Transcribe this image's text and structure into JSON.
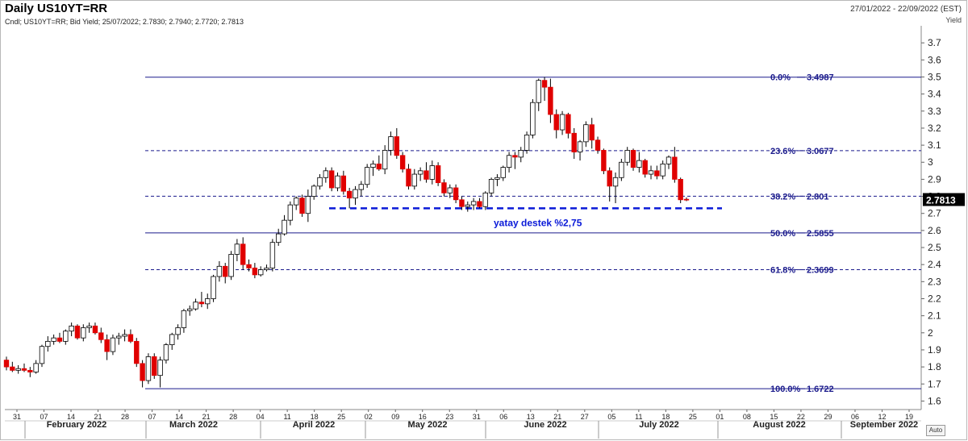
{
  "header": {
    "title": "Daily US10YT=RR",
    "subtitle": "Cndl; US10YT=RR; Bid Yield; 25/07/2022; 2.7830; 2.7940; 2.7720; 2.7813",
    "date_range": "27/01/2022 - 22/09/2022 (EST)",
    "y_unit": "Yield",
    "auto_label": "Auto"
  },
  "colors": {
    "up": "#ffffff",
    "down": "#e00000",
    "fib": "#1a1a8c",
    "support": "#0a1ad8",
    "price_box": "#000000"
  },
  "chart_data": {
    "type": "candlestick",
    "ylim": [
      1.55,
      3.8
    ],
    "y_ticks": [
      "1.6",
      "1.7",
      "1.8",
      "1.9",
      "2",
      "2.1",
      "2.2",
      "2.3",
      "2.4",
      "2.5",
      "2.6",
      "2.7",
      "2.8",
      "2.9",
      "3",
      "3.1",
      "3.2",
      "3.3",
      "3.4",
      "3.5",
      "3.6",
      "3.7"
    ],
    "x_ticks": [
      "31",
      "07",
      "14",
      "21",
      "28",
      "07",
      "14",
      "21",
      "28",
      "04",
      "11",
      "18",
      "25",
      "02",
      "09",
      "16",
      "23",
      "31",
      "06",
      "13",
      "21",
      "27",
      "05",
      "11",
      "18",
      "25",
      "01",
      "08",
      "15",
      "22",
      "29",
      "06",
      "12",
      "19"
    ],
    "months": [
      "February 2022",
      "March 2022",
      "April 2022",
      "May 2022",
      "June 2022",
      "July 2022",
      "August 2022",
      "September 2022"
    ],
    "last_price": "2.7813",
    "fib_levels": [
      {
        "label": "0.0%",
        "value": "3.4987",
        "y": 3.4987,
        "dash": false
      },
      {
        "label": "23.6%",
        "value": "3.0677",
        "y": 3.0677,
        "dash": true
      },
      {
        "label": "38.2%",
        "value": "2.801",
        "y": 2.801,
        "dash": true
      },
      {
        "label": "50.0%",
        "value": "2.5855",
        "y": 2.5855,
        "dash": false
      },
      {
        "label": "61.8%",
        "value": "2.3699",
        "y": 2.3699,
        "dash": true
      },
      {
        "label": "100.0%",
        "value": "1.6722",
        "y": 1.6722,
        "dash": false
      }
    ],
    "support": {
      "label": "yatay destek %2,75",
      "y": 2.73
    },
    "candles": [
      [
        1.84,
        1.86,
        1.78,
        1.8
      ],
      [
        1.8,
        1.83,
        1.77,
        1.78
      ],
      [
        1.78,
        1.81,
        1.76,
        1.79
      ],
      [
        1.79,
        1.82,
        1.77,
        1.78
      ],
      [
        1.78,
        1.8,
        1.74,
        1.77
      ],
      [
        1.77,
        1.84,
        1.76,
        1.82
      ],
      [
        1.82,
        1.93,
        1.8,
        1.92
      ],
      [
        1.92,
        1.98,
        1.89,
        1.95
      ],
      [
        1.95,
        1.99,
        1.93,
        1.97
      ],
      [
        1.97,
        2.0,
        1.94,
        1.95
      ],
      [
        1.95,
        2.02,
        1.93,
        2.01
      ],
      [
        2.01,
        2.06,
        1.98,
        2.04
      ],
      [
        2.04,
        2.05,
        1.96,
        1.97
      ],
      [
        1.97,
        2.05,
        1.95,
        2.03
      ],
      [
        2.03,
        2.06,
        2.0,
        2.04
      ],
      [
        2.04,
        2.06,
        1.99,
        2.0
      ],
      [
        2.0,
        2.03,
        1.94,
        1.96
      ],
      [
        1.96,
        1.99,
        1.84,
        1.89
      ],
      [
        1.89,
        1.99,
        1.87,
        1.97
      ],
      [
        1.97,
        2.0,
        1.93,
        1.98
      ],
      [
        1.98,
        2.02,
        1.95,
        1.99
      ],
      [
        1.99,
        2.02,
        1.94,
        1.95
      ],
      [
        1.95,
        1.97,
        1.8,
        1.82
      ],
      [
        1.82,
        1.84,
        1.68,
        1.72
      ],
      [
        1.72,
        1.88,
        1.7,
        1.86
      ],
      [
        1.86,
        1.88,
        1.73,
        1.75
      ],
      [
        1.75,
        1.86,
        1.68,
        1.84
      ],
      [
        1.84,
        1.94,
        1.82,
        1.93
      ],
      [
        1.93,
        2.0,
        1.9,
        1.99
      ],
      [
        1.99,
        2.05,
        1.96,
        2.03
      ],
      [
        2.03,
        2.14,
        2.0,
        2.13
      ],
      [
        2.13,
        2.16,
        2.1,
        2.14
      ],
      [
        2.14,
        2.2,
        2.13,
        2.18
      ],
      [
        2.18,
        2.24,
        2.15,
        2.17
      ],
      [
        2.17,
        2.23,
        2.14,
        2.2
      ],
      [
        2.2,
        2.34,
        2.18,
        2.33
      ],
      [
        2.33,
        2.42,
        2.3,
        2.39
      ],
      [
        2.39,
        2.41,
        2.29,
        2.33
      ],
      [
        2.33,
        2.48,
        2.31,
        2.46
      ],
      [
        2.46,
        2.55,
        2.42,
        2.52
      ],
      [
        2.52,
        2.56,
        2.37,
        2.4
      ],
      [
        2.4,
        2.43,
        2.36,
        2.38
      ],
      [
        2.38,
        2.41,
        2.32,
        2.34
      ],
      [
        2.34,
        2.39,
        2.33,
        2.37
      ],
      [
        2.37,
        2.4,
        2.36,
        2.38
      ],
      [
        2.38,
        2.55,
        2.36,
        2.53
      ],
      [
        2.53,
        2.61,
        2.51,
        2.58
      ],
      [
        2.58,
        2.69,
        2.57,
        2.66
      ],
      [
        2.66,
        2.77,
        2.63,
        2.75
      ],
      [
        2.75,
        2.8,
        2.72,
        2.79
      ],
      [
        2.79,
        2.81,
        2.68,
        2.7
      ],
      [
        2.7,
        2.84,
        2.65,
        2.8
      ],
      [
        2.8,
        2.87,
        2.78,
        2.86
      ],
      [
        2.86,
        2.93,
        2.84,
        2.91
      ],
      [
        2.91,
        2.97,
        2.88,
        2.95
      ],
      [
        2.95,
        2.97,
        2.83,
        2.85
      ],
      [
        2.85,
        2.94,
        2.83,
        2.92
      ],
      [
        2.92,
        2.95,
        2.81,
        2.83
      ],
      [
        2.83,
        2.85,
        2.73,
        2.79
      ],
      [
        2.79,
        2.86,
        2.75,
        2.84
      ],
      [
        2.84,
        2.89,
        2.8,
        2.87
      ],
      [
        2.87,
        2.99,
        2.85,
        2.97
      ],
      [
        2.97,
        3.01,
        2.92,
        2.99
      ],
      [
        2.99,
        3.04,
        2.95,
        2.96
      ],
      [
        2.96,
        3.1,
        2.93,
        3.07
      ],
      [
        3.07,
        3.18,
        3.04,
        3.15
      ],
      [
        3.15,
        3.2,
        3.02,
        3.04
      ],
      [
        3.04,
        3.06,
        2.94,
        2.96
      ],
      [
        2.96,
        2.99,
        2.84,
        2.86
      ],
      [
        2.86,
        2.96,
        2.84,
        2.93
      ],
      [
        2.93,
        2.97,
        2.89,
        2.95
      ],
      [
        2.95,
        3.0,
        2.88,
        2.9
      ],
      [
        2.9,
        3.01,
        2.87,
        2.98
      ],
      [
        2.98,
        3.0,
        2.86,
        2.88
      ],
      [
        2.88,
        2.9,
        2.8,
        2.82
      ],
      [
        2.82,
        2.87,
        2.79,
        2.85
      ],
      [
        2.85,
        2.87,
        2.76,
        2.78
      ],
      [
        2.78,
        2.8,
        2.72,
        2.74
      ],
      [
        2.74,
        2.77,
        2.71,
        2.75
      ],
      [
        2.75,
        2.79,
        2.72,
        2.77
      ],
      [
        2.77,
        2.79,
        2.73,
        2.74
      ],
      [
        2.74,
        2.83,
        2.72,
        2.82
      ],
      [
        2.82,
        2.91,
        2.8,
        2.9
      ],
      [
        2.9,
        2.93,
        2.86,
        2.91
      ],
      [
        2.91,
        2.98,
        2.89,
        2.97
      ],
      [
        2.97,
        3.06,
        2.94,
        3.04
      ],
      [
        3.04,
        3.06,
        2.96,
        3.03
      ],
      [
        3.03,
        3.09,
        3.0,
        3.07
      ],
      [
        3.07,
        3.18,
        3.05,
        3.16
      ],
      [
        3.16,
        3.37,
        3.14,
        3.35
      ],
      [
        3.35,
        3.49,
        3.3,
        3.48
      ],
      [
        3.48,
        3.5,
        3.36,
        3.44
      ],
      [
        3.44,
        3.49,
        3.23,
        3.28
      ],
      [
        3.28,
        3.31,
        3.14,
        3.19
      ],
      [
        3.19,
        3.3,
        3.16,
        3.28
      ],
      [
        3.28,
        3.29,
        3.14,
        3.17
      ],
      [
        3.17,
        3.2,
        3.02,
        3.06
      ],
      [
        3.06,
        3.13,
        3.01,
        3.12
      ],
      [
        3.12,
        3.24,
        3.09,
        3.22
      ],
      [
        3.22,
        3.26,
        3.08,
        3.13
      ],
      [
        3.13,
        3.15,
        3.05,
        3.07
      ],
      [
        3.07,
        3.08,
        2.93,
        2.95
      ],
      [
        2.95,
        2.97,
        2.77,
        2.86
      ],
      [
        2.86,
        2.94,
        2.76,
        2.91
      ],
      [
        2.91,
        3.02,
        2.89,
        3.0
      ],
      [
        3.0,
        3.09,
        2.98,
        3.07
      ],
      [
        3.07,
        3.08,
        2.95,
        2.97
      ],
      [
        2.97,
        3.06,
        2.94,
        3.01
      ],
      [
        3.01,
        3.02,
        2.91,
        2.93
      ],
      [
        2.93,
        2.98,
        2.9,
        2.95
      ],
      [
        2.95,
        2.98,
        2.9,
        2.92
      ],
      [
        2.92,
        3.01,
        2.9,
        2.99
      ],
      [
        2.99,
        3.04,
        2.96,
        3.03
      ],
      [
        3.03,
        3.09,
        2.88,
        2.9
      ],
      [
        2.9,
        2.91,
        2.76,
        2.78
      ],
      [
        2.783,
        2.794,
        2.772,
        2.7813
      ]
    ]
  }
}
